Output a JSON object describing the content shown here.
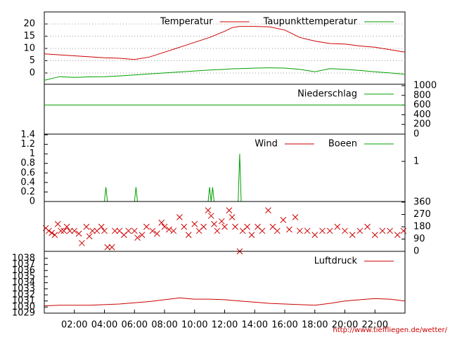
{
  "chart_data": [
    {
      "type": "line",
      "ylim": [
        -4.6,
        24.9
      ],
      "yticks": [
        0,
        5,
        10,
        15,
        20
      ],
      "xlim": [
        0,
        24
      ],
      "grid": true,
      "x": [
        0,
        1,
        2,
        3,
        4,
        5,
        6,
        7,
        8,
        9,
        10,
        11,
        12,
        12.5,
        13,
        14,
        15,
        16,
        17,
        18,
        19,
        20,
        21,
        22,
        23,
        24
      ],
      "series": [
        {
          "name": "Temperatur",
          "color": "#cc0000",
          "values": [
            7.8,
            7.4,
            7,
            6.6,
            6.2,
            6,
            5.5,
            6.5,
            8.5,
            10.5,
            12.5,
            14.5,
            17,
            18.5,
            19,
            19,
            18.8,
            17.5,
            14.5,
            13,
            12,
            11.8,
            11,
            10.5,
            9.5,
            8.5
          ]
        },
        {
          "name": "Taupunkttemperatur",
          "color": "#00a000",
          "values": [
            -3,
            -1.5,
            -1.8,
            -1.6,
            -1.5,
            -1.2,
            -0.8,
            -0.4,
            0,
            0.4,
            0.8,
            1.2,
            1.5,
            1.7,
            1.8,
            2,
            2.1,
            2,
            1.5,
            0.5,
            1.8,
            1.5,
            1,
            0.5,
            0,
            -0.5
          ]
        }
      ]
    },
    {
      "type": "line",
      "y2lim": [
        0,
        1029
      ],
      "y2ticks": [
        0,
        200,
        400,
        600,
        800,
        1000
      ],
      "xlim": [
        0,
        24
      ],
      "x": [
        0,
        24
      ],
      "series": [
        {
          "name": "Niederschlag",
          "color": "#00a000",
          "axis": "y2",
          "values": [
            600,
            600
          ]
        }
      ]
    },
    {
      "type": "line",
      "ylim": [
        0,
        1.415
      ],
      "yticks": [
        0,
        0.2,
        0.4,
        0.6,
        0.8,
        1,
        1.2,
        1.4
      ],
      "y2lim": [
        0,
        1.68
      ],
      "y2ticks": [
        1
      ],
      "xlim": [
        0,
        24
      ],
      "x": [
        0,
        4,
        4.1,
        4.2,
        6,
        6.1,
        6.2,
        10.9,
        11,
        11.1,
        11.2,
        11.3,
        12.9,
        13,
        13.1,
        24
      ],
      "series": [
        {
          "name": "Wind",
          "color": "#cc0000",
          "values": [
            0,
            0,
            0,
            0,
            0,
            0,
            0,
            0,
            0,
            0,
            0,
            0,
            0,
            0,
            0,
            0
          ]
        },
        {
          "name": "Boeen",
          "color": "#00a000",
          "values": [
            0,
            0,
            0.3,
            0,
            0,
            0.3,
            0,
            0,
            0.3,
            0,
            0.3,
            0,
            0,
            1,
            0,
            0
          ]
        }
      ]
    },
    {
      "type": "scatter",
      "y2lim": [
        0,
        365
      ],
      "y2ticks": [
        0,
        90,
        180,
        270,
        360
      ],
      "xlim": [
        0,
        24
      ],
      "x": [
        0.1,
        0.3,
        0.5,
        0.7,
        0.9,
        1.1,
        1.3,
        1.5,
        1.7,
        2,
        2.3,
        2.5,
        2.8,
        3,
        3.2,
        3.5,
        3.8,
        4,
        4.2,
        4.5,
        4.7,
        5,
        5.3,
        5.6,
        6,
        6.2,
        6.5,
        6.8,
        7.2,
        7.5,
        7.8,
        8,
        8.3,
        8.6,
        9,
        9.3,
        9.6,
        10,
        10.3,
        10.6,
        10.9,
        11.1,
        11.3,
        11.5,
        11.8,
        12,
        12.3,
        12.5,
        12.7,
        13,
        13.2,
        13.5,
        13.8,
        14.2,
        14.5,
        14.9,
        15.2,
        15.5,
        15.9,
        16.3,
        16.7,
        17,
        17.5,
        18,
        18.5,
        19,
        19.5,
        20,
        20.5,
        21,
        21.5,
        22,
        22.5,
        23,
        23.5,
        23.9
      ],
      "series": [
        {
          "color": "#cc0000",
          "axis": "y2",
          "values": [
            170,
            150,
            135,
            120,
            200,
            150,
            150,
            180,
            150,
            150,
            130,
            60,
            180,
            110,
            150,
            150,
            180,
            150,
            30,
            30,
            150,
            150,
            120,
            150,
            150,
            100,
            120,
            180,
            150,
            130,
            210,
            180,
            160,
            150,
            250,
            180,
            120,
            200,
            150,
            180,
            300,
            260,
            200,
            150,
            220,
            180,
            300,
            250,
            180,
            0,
            150,
            180,
            120,
            180,
            150,
            300,
            180,
            150,
            230,
            160,
            250,
            150,
            150,
            120,
            150,
            150,
            180,
            150,
            120,
            150,
            180,
            120,
            150,
            150,
            120,
            150
          ]
        }
      ]
    },
    {
      "type": "line",
      "ylim": [
        1029,
        1039.15
      ],
      "yticks": [
        1029,
        1030,
        1031,
        1032,
        1033,
        1034,
        1035,
        1036,
        1037,
        1038
      ],
      "xlim": [
        0,
        24
      ],
      "xticks": [
        {
          "value": 2,
          "label": "02:00"
        },
        {
          "value": 4,
          "label": "04:00"
        },
        {
          "value": 6,
          "label": "06:00"
        },
        {
          "value": 8,
          "label": "08:00"
        },
        {
          "value": 10,
          "label": "10:00"
        },
        {
          "value": 12,
          "label": "12:00"
        },
        {
          "value": 14,
          "label": "14:00"
        },
        {
          "value": 16,
          "label": "16:00"
        },
        {
          "value": 18,
          "label": "18:00"
        },
        {
          "value": 20,
          "label": "20:00"
        },
        {
          "value": 22,
          "label": "22:00"
        }
      ],
      "x": [
        0,
        1,
        2,
        3,
        4,
        5,
        6,
        7,
        8,
        9,
        10,
        11,
        12,
        13,
        14,
        15,
        16,
        17,
        18,
        19,
        20,
        21,
        22,
        23,
        24
      ],
      "series": [
        {
          "name": "Luftdruck",
          "color": "#cc0000",
          "values": [
            1030.2,
            1030.3,
            1030.3,
            1030.3,
            1030.4,
            1030.5,
            1030.7,
            1030.9,
            1031.2,
            1031.5,
            1031.3,
            1031.3,
            1031.2,
            1031,
            1030.8,
            1030.6,
            1030.5,
            1030.4,
            1030.3,
            1030.6,
            1031,
            1031.2,
            1031.4,
            1031.3,
            1031
          ]
        }
      ]
    }
  ],
  "footer": "http://www.tieffliegen.de/wetter/"
}
